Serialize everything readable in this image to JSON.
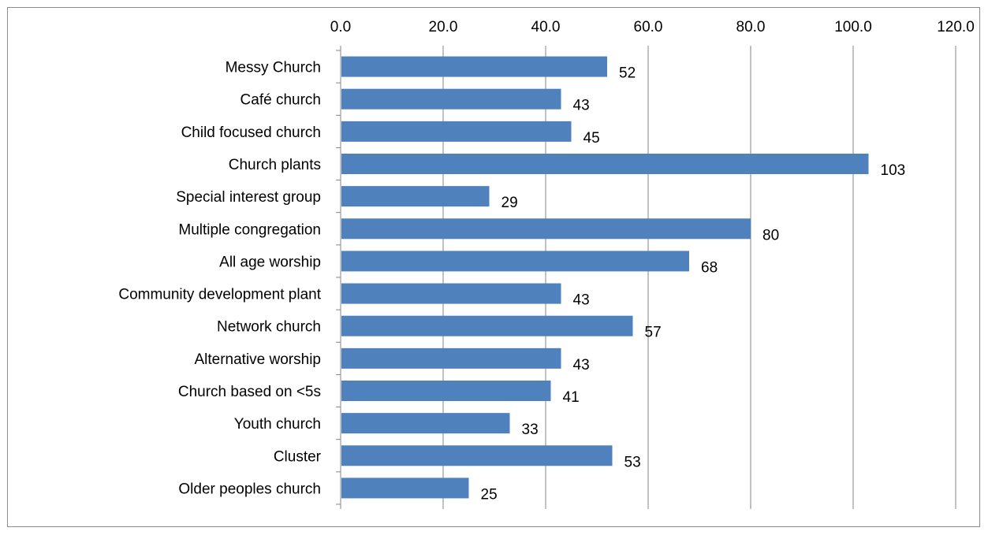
{
  "chart_data": {
    "type": "bar",
    "orientation": "horizontal",
    "title": "",
    "xlabel": "",
    "ylabel": "",
    "categories": [
      "Messy Church",
      "Café church",
      "Child focused church",
      "Church plants",
      "Special interest group",
      "Multiple congregation",
      "All age worship",
      "Community development plant",
      "Network church",
      "Alternative worship",
      "Church based on <5s",
      "Youth church",
      "Cluster",
      "Older peoples church"
    ],
    "values": [
      52,
      43,
      45,
      103,
      29,
      80,
      68,
      43,
      57,
      43,
      41,
      33,
      53,
      25
    ],
    "data_labels": [
      "52",
      "43",
      "45",
      "103",
      "29",
      "80",
      "68",
      "43",
      "57",
      "43",
      "41",
      "33",
      "53",
      "25"
    ],
    "xlim": [
      0,
      120
    ],
    "x_ticks": [
      "0.0",
      "20.0",
      "40.0",
      "60.0",
      "80.0",
      "100.0",
      "120.0"
    ],
    "axis_position": "top",
    "grid": true,
    "legend": "none",
    "bar_color": "#4f81bd"
  }
}
